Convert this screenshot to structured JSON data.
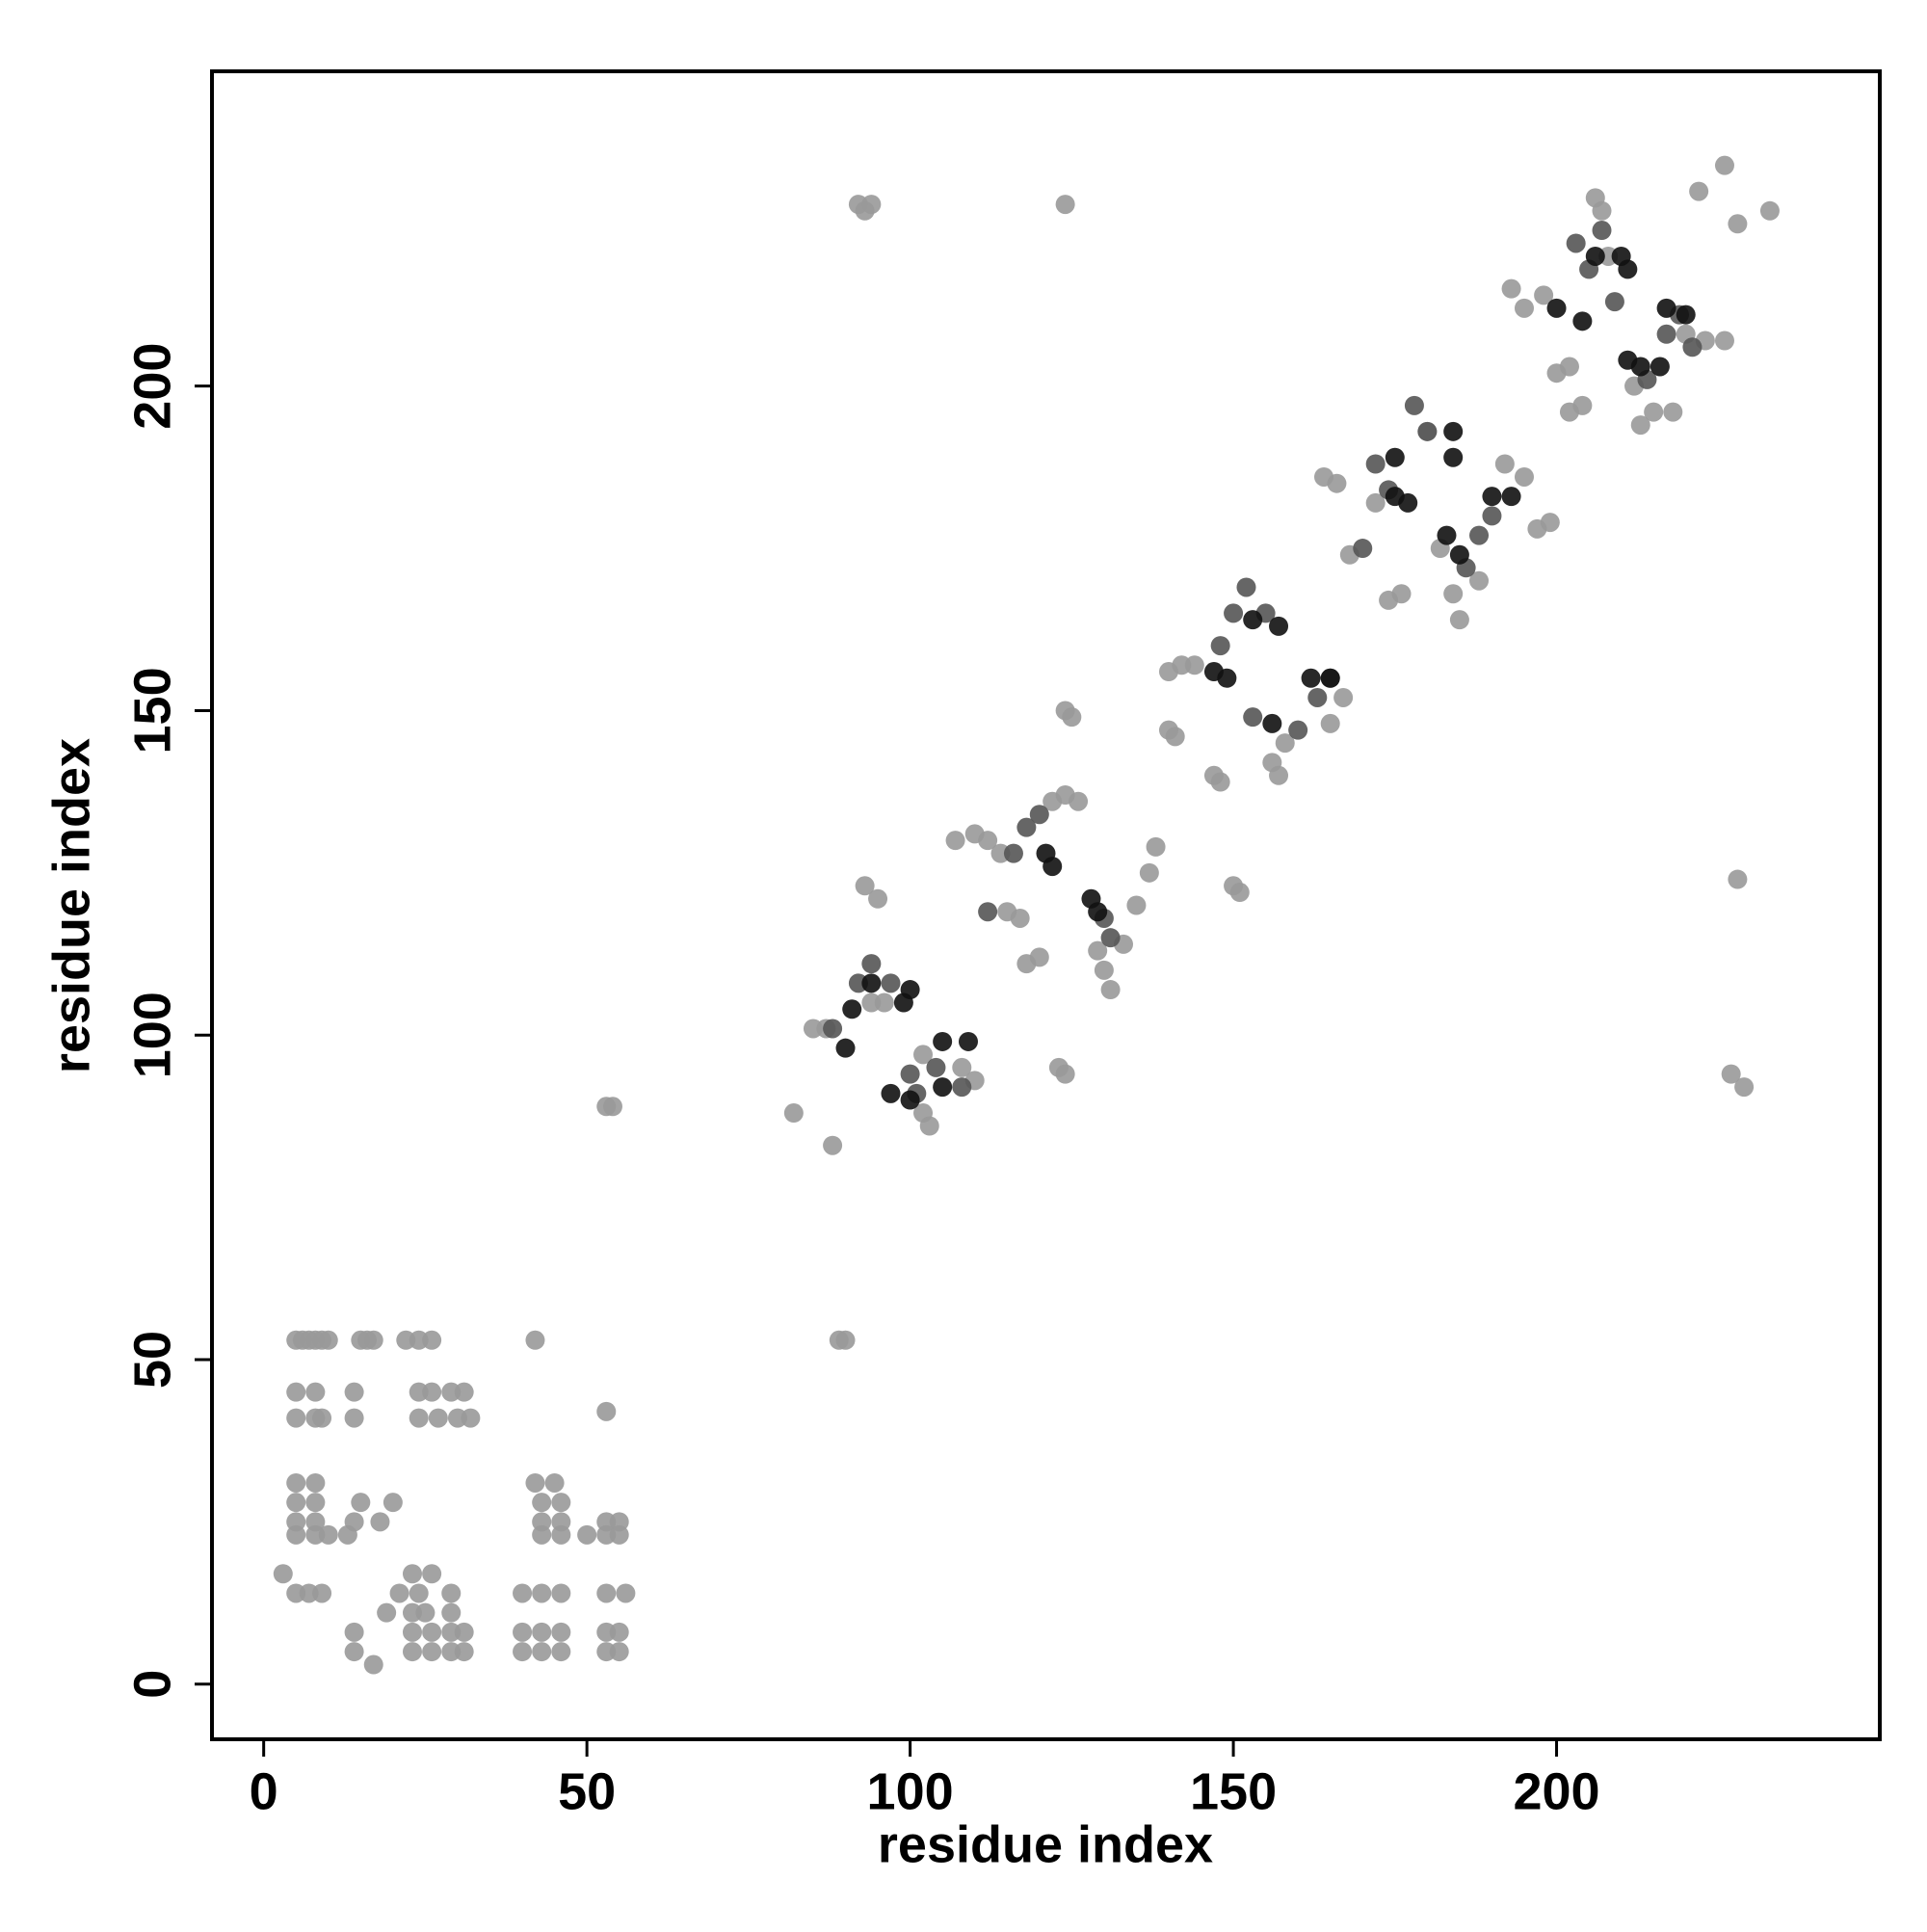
{
  "chart_data": {
    "type": "scatter",
    "x_label": "residue index",
    "y_label": "residue index",
    "xlim": [
      -8,
      250
    ],
    "ylim": [
      -8.5,
      248.5
    ],
    "xticks": [
      0,
      50,
      100,
      150,
      200
    ],
    "yticks": [
      0,
      50,
      100,
      150,
      200
    ],
    "series": [
      {
        "color": "#999999",
        "x": [
          5,
          6,
          7,
          8,
          9,
          10,
          15,
          16,
          17,
          22,
          24,
          26,
          5,
          8,
          14,
          24,
          26,
          29,
          31,
          5,
          8,
          9,
          14,
          24,
          27,
          30,
          32,
          5,
          8,
          42,
          45,
          5,
          8,
          15,
          20,
          43,
          46,
          5,
          8,
          14,
          18,
          43,
          46,
          53,
          55,
          5,
          8,
          10,
          13,
          43,
          46,
          50,
          53,
          55,
          3,
          23,
          26,
          5,
          7,
          9,
          21,
          24,
          29,
          40,
          43,
          46,
          53,
          56,
          19,
          23,
          25,
          29,
          14,
          23,
          26,
          29,
          31,
          40,
          43,
          46,
          53,
          55,
          14,
          23,
          26,
          29,
          31,
          40,
          43,
          46,
          53,
          55,
          17,
          42,
          53,
          53,
          54,
          89,
          90,
          82,
          88,
          92,
          93,
          94,
          124,
          93,
          95,
          123,
          124,
          85,
          87,
          94,
          96,
          102,
          102,
          103,
          110,
          108,
          107,
          110,
          112,
          114,
          115,
          117,
          118,
          120,
          122,
          124,
          126,
          124,
          125,
          129,
          130,
          131,
          133,
          135,
          137,
          138,
          140,
          141,
          140,
          142,
          144,
          147,
          148,
          150,
          151,
          156,
          157,
          158,
          165,
          167,
          164,
          166,
          168,
          172,
          174,
          176,
          180,
          182,
          184,
          185,
          188,
          192,
          195,
          197,
          199,
          193,
          195,
          198,
          200,
          202,
          202,
          204,
          206,
          207,
          208,
          212,
          213,
          215,
          218,
          220,
          223,
          226,
          222,
          226,
          228,
          233,
          228,
          227,
          229
        ],
        "y": [
          53,
          53,
          53,
          53,
          53,
          53,
          53,
          53,
          53,
          53,
          53,
          53,
          45,
          45,
          45,
          45,
          45,
          45,
          45,
          41,
          41,
          41,
          41,
          41,
          41,
          41,
          41,
          31,
          31,
          31,
          31,
          28,
          28,
          28,
          28,
          28,
          28,
          25,
          25,
          25,
          25,
          25,
          25,
          25,
          25,
          23,
          23,
          23,
          23,
          23,
          23,
          23,
          23,
          23,
          17,
          17,
          17,
          14,
          14,
          14,
          14,
          14,
          14,
          14,
          14,
          14,
          14,
          14,
          11,
          11,
          11,
          11,
          8,
          8,
          8,
          8,
          8,
          8,
          8,
          8,
          8,
          8,
          5,
          5,
          5,
          5,
          5,
          5,
          5,
          5,
          5,
          5,
          3,
          53,
          42,
          89,
          89,
          53,
          53,
          88,
          83,
          228,
          227,
          228,
          228,
          123,
          121,
          95,
          94,
          101,
          101,
          105,
          105,
          97,
          88,
          86,
          93,
          95,
          130,
          131,
          130,
          128,
          119,
          118,
          111,
          112,
          136,
          137,
          136,
          150,
          149,
          113,
          110,
          107,
          114,
          120,
          125,
          129,
          147,
          146,
          156,
          157,
          157,
          140,
          139,
          123,
          122,
          142,
          140,
          145,
          148,
          152,
          186,
          185,
          174,
          182,
          167,
          168,
          193,
          175,
          168,
          164,
          170,
          188,
          186,
          178,
          179,
          215,
          212,
          214,
          202,
          203,
          196,
          197,
          229,
          227,
          220,
          200,
          194,
          196,
          196,
          208,
          207,
          207,
          230,
          234,
          225,
          227,
          124,
          94,
          92
        ]
      },
      {
        "color": "#555555",
        "x": [
          88,
          92,
          94,
          97,
          100,
          101,
          104,
          108,
          112,
          116,
          118,
          120,
          130,
          131,
          148,
          150,
          152,
          155,
          153,
          160,
          163,
          165,
          170,
          172,
          174,
          178,
          180,
          186,
          188,
          190,
          203,
          205,
          207,
          209,
          214,
          217,
          219,
          221
        ],
        "y": [
          101,
          108,
          111,
          108,
          94,
          91,
          95,
          92,
          119,
          128,
          132,
          134,
          118,
          115,
          160,
          165,
          169,
          165,
          149,
          147,
          152,
          155,
          175,
          188,
          184,
          197,
          193,
          172,
          177,
          180,
          222,
          218,
          224,
          213,
          201,
          208,
          211,
          206
        ]
      },
      {
        "color": "#111111",
        "x": [
          90,
          91,
          94,
          99,
          100,
          97,
          100,
          105,
          105,
          109,
          121,
          122,
          128,
          129,
          147,
          149,
          153,
          156,
          157,
          162,
          165,
          175,
          177,
          175,
          184,
          184,
          183,
          185,
          190,
          193,
          200,
          204,
          206,
          210,
          211,
          211,
          213,
          216,
          217,
          220
        ],
        "y": [
          98,
          104,
          108,
          105,
          107,
          91,
          90,
          92,
          99,
          99,
          128,
          126,
          121,
          119,
          156,
          155,
          164,
          148,
          163,
          155,
          155,
          183,
          182,
          189,
          193,
          189,
          177,
          174,
          183,
          183,
          212,
          210,
          220,
          220,
          218,
          204,
          203,
          203,
          212,
          211
        ]
      }
    ]
  }
}
